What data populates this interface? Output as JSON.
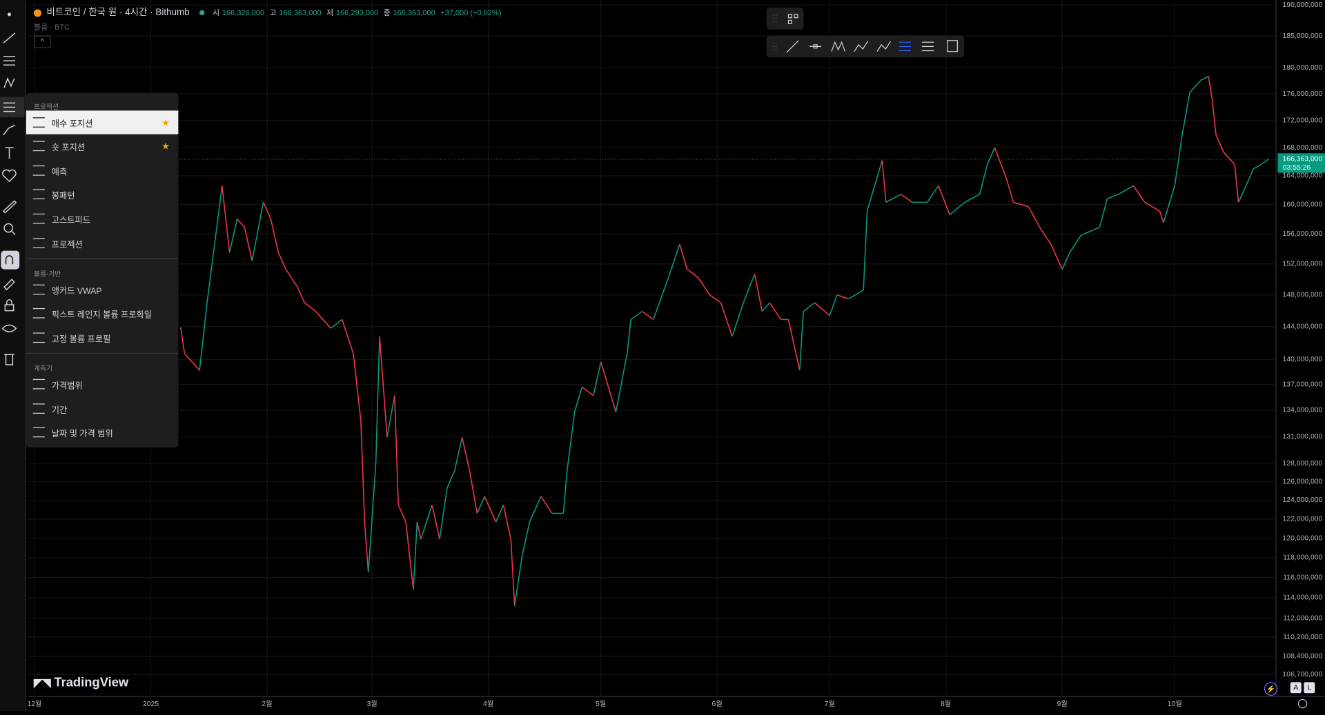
{
  "header": {
    "symbol": "비트코인 / 한국 원 · 4시간 · Bithumb",
    "open_label": "시",
    "open": "166,326,000",
    "high_label": "고",
    "high": "166,363,000",
    "low_label": "저",
    "low": "166,293,000",
    "close_label": "종",
    "close": "166,363,000",
    "change": "+37,000 (+0.02%)",
    "volume_label": "볼륨 · BTC"
  },
  "menu": {
    "sections": [
      {
        "title": "프로젝션",
        "items": [
          "매수 포지션",
          "숏 포지션",
          "예측",
          "봉패턴",
          "고스트피드",
          "프로젝션"
        ]
      },
      {
        "title": "볼륨-기반",
        "items": [
          "앵커드 VWAP",
          "픽스트 레인지 볼륨 프로화일",
          "고정 볼륨 프로필"
        ]
      },
      {
        "title": "계측기",
        "items": [
          "가격범위",
          "기간",
          "날짜 및 가격 범위"
        ]
      }
    ]
  },
  "watermark": "TradingView",
  "badges": [
    "A",
    "L"
  ],
  "chart_data": {
    "type": "line",
    "log_scale": true,
    "grid": true,
    "up_color": "#089981",
    "down_color": "#f23645",
    "xlim": [
      -2,
      331
    ],
    "xticks": [
      {
        "value": 0,
        "label": "12월"
      },
      {
        "value": 31,
        "label": "2025"
      },
      {
        "value": 62,
        "label": "2월"
      },
      {
        "value": 90,
        "label": "3월"
      },
      {
        "value": 121,
        "label": "4월"
      },
      {
        "value": 151,
        "label": "5월"
      },
      {
        "value": 182,
        "label": "6월"
      },
      {
        "value": 212,
        "label": "7월"
      },
      {
        "value": 243,
        "label": "8월"
      },
      {
        "value": 274,
        "label": "9월"
      },
      {
        "value": 304,
        "label": "10월"
      }
    ],
    "ylim": [
      104700000,
      190830000
    ],
    "yticks": [
      {
        "value": 190000000,
        "label": "190,000,000"
      },
      {
        "value": 185000000,
        "label": "185,000,000"
      },
      {
        "value": 180000000,
        "label": "180,000,000"
      },
      {
        "value": 176000000,
        "label": "176,000,000"
      },
      {
        "value": 172000000,
        "label": "172,000,000"
      },
      {
        "value": 168000000,
        "label": "168,000,000"
      },
      {
        "value": 164000000,
        "label": "164,000,000"
      },
      {
        "value": 160000000,
        "label": "160,000,000"
      },
      {
        "value": 156000000,
        "label": "156,000,000"
      },
      {
        "value": 152000000,
        "label": "152,000,000"
      },
      {
        "value": 148000000,
        "label": "148,000,000"
      },
      {
        "value": 144000000,
        "label": "144,000,000"
      },
      {
        "value": 140000000,
        "label": "140,000,000"
      },
      {
        "value": 137000000,
        "label": "137,000,000"
      },
      {
        "value": 134000000,
        "label": "134,000,000"
      },
      {
        "value": 131000000,
        "label": "131,000,000"
      },
      {
        "value": 128000000,
        "label": "128,000,000"
      },
      {
        "value": 126000000,
        "label": "126,000,000"
      },
      {
        "value": 124000000,
        "label": "124,000,000"
      },
      {
        "value": 122000000,
        "label": "122,000,000"
      },
      {
        "value": 120000000,
        "label": "120,000,000"
      },
      {
        "value": 118000000,
        "label": "118,000,000"
      },
      {
        "value": 116000000,
        "label": "116,000,000"
      },
      {
        "value": 114000000,
        "label": "114,000,000"
      },
      {
        "value": 112000000,
        "label": "112,000,000"
      },
      {
        "value": 110200000,
        "label": "110,200,000"
      },
      {
        "value": 108400000,
        "label": "108,400,000"
      },
      {
        "value": 106700000,
        "label": "106,700,000"
      }
    ],
    "x": [
      39,
      40,
      44,
      46,
      48,
      50,
      52,
      54,
      56,
      58,
      61,
      63,
      65,
      67,
      70,
      72,
      75,
      79,
      82,
      85,
      87,
      88,
      89,
      91,
      92,
      94,
      96,
      97,
      99,
      101,
      102,
      103,
      106,
      108,
      110,
      112,
      114,
      116,
      118,
      120,
      123,
      125,
      127,
      128,
      130,
      132,
      135,
      138,
      141,
      142,
      144,
      146,
      149,
      151,
      153,
      155,
      158,
      159,
      162,
      165,
      169,
      172,
      174,
      177,
      180,
      183,
      186,
      189,
      192,
      194,
      196,
      199,
      201,
      204,
      205,
      208,
      212,
      214,
      217,
      221,
      222,
      226,
      227,
      231,
      234,
      238,
      241,
      244,
      248,
      252,
      254,
      256,
      259,
      261,
      265,
      268,
      271,
      274,
      276,
      279,
      284,
      286,
      289,
      293,
      296,
      300,
      301,
      304,
      306,
      308,
      311,
      313,
      314,
      315,
      317,
      320,
      321,
      323,
      325,
      327,
      329
    ],
    "values": [
      143800000,
      140700000,
      138700000,
      147000000,
      154600000,
      162600000,
      153500000,
      158000000,
      156900000,
      152400000,
      160300000,
      158000000,
      153500000,
      151300000,
      149100000,
      147000000,
      145900000,
      143800000,
      144900000,
      140700000,
      132800000,
      121700000,
      116500000,
      128100000,
      142800000,
      130900000,
      135700000,
      123500000,
      121700000,
      114800000,
      121700000,
      119900000,
      123500000,
      119900000,
      125300000,
      127200000,
      130900000,
      127200000,
      122600000,
      124400000,
      121700000,
      123500000,
      119900000,
      113200000,
      118200000,
      121700000,
      124400000,
      122600000,
      122600000,
      127200000,
      133800000,
      136700000,
      135700000,
      139700000,
      136700000,
      133800000,
      140700000,
      144900000,
      145900000,
      144900000,
      150200000,
      154600000,
      151300000,
      150200000,
      148000000,
      147000000,
      142800000,
      147000000,
      150700000,
      145900000,
      147000000,
      144900000,
      144900000,
      138700000,
      145900000,
      147000000,
      145400000,
      148000000,
      147500000,
      148600000,
      159100000,
      166200000,
      160300000,
      161400000,
      160300000,
      160300000,
      162600000,
      158600000,
      160300000,
      161400000,
      165600000,
      168000000,
      163800000,
      160300000,
      159700000,
      156900000,
      154600000,
      151300000,
      153500000,
      155800000,
      156900000,
      160800000,
      161400000,
      162600000,
      160300000,
      159100000,
      157500000,
      162600000,
      169900000,
      176200000,
      178100000,
      178700000,
      175100000,
      169900000,
      167400000,
      165600000,
      160300000,
      162600000,
      165000000,
      165600000,
      166363000
    ],
    "last_price": {
      "value": 166363000,
      "label": "166,363,000",
      "countdown": "03:55:26"
    }
  }
}
